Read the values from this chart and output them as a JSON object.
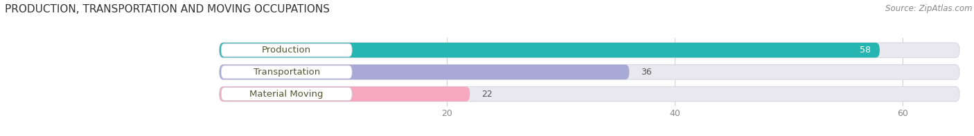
{
  "title": "PRODUCTION, TRANSPORTATION AND MOVING OCCUPATIONS",
  "source": "Source: ZipAtlas.com",
  "categories": [
    "Production",
    "Transportation",
    "Material Moving"
  ],
  "values": [
    58,
    36,
    22
  ],
  "bar_colors": [
    "#26b5b0",
    "#a9a9d8",
    "#f5a8c0"
  ],
  "value_text_colors": [
    "#ffffff",
    "#555555",
    "#555555"
  ],
  "xlim_left": -12,
  "xlim_right": 65,
  "xticks": [
    20,
    40,
    60
  ],
  "figsize": [
    14.06,
    1.97
  ],
  "dpi": 100,
  "title_fontsize": 11,
  "label_fontsize": 9.5,
  "value_fontsize": 9,
  "source_fontsize": 8.5,
  "bg_color": "#ffffff",
  "track_color": "#e8e8ee",
  "track_edge_color": "#d8d8e0",
  "pill_bg_color": "#ffffff",
  "pill_edge_color": "#ccccdd",
  "label_text_color": "#555533",
  "tick_color": "#888888",
  "grid_color": "#d0d0d8"
}
